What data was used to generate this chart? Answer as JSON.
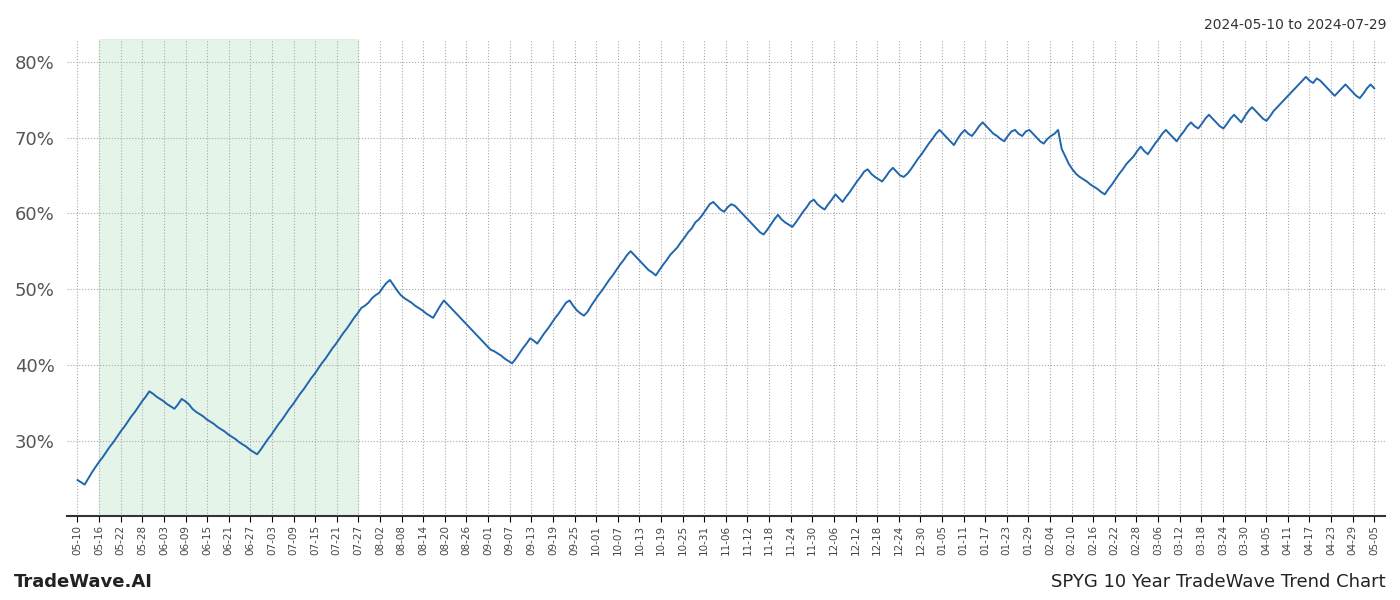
{
  "title_top_right": "2024-05-10 to 2024-07-29",
  "footer_left": "TradeWave.AI",
  "footer_right": "SPYG 10 Year TradeWave Trend Chart",
  "background_color": "#ffffff",
  "line_color": "#2166ac",
  "line_width": 1.4,
  "shade_color": "#d4edda",
  "shade_alpha": 0.6,
  "ylim": [
    20,
    83
  ],
  "yticks": [
    30,
    40,
    50,
    60,
    70,
    80
  ],
  "grid_color": "#aaaaaa",
  "x_labels": [
    "05-10",
    "05-16",
    "05-22",
    "05-28",
    "06-03",
    "06-09",
    "06-15",
    "06-21",
    "06-27",
    "07-03",
    "07-09",
    "07-15",
    "07-21",
    "07-27",
    "08-02",
    "08-08",
    "08-14",
    "08-20",
    "08-26",
    "09-01",
    "09-07",
    "09-13",
    "09-19",
    "09-25",
    "10-01",
    "10-07",
    "10-13",
    "10-19",
    "10-25",
    "10-31",
    "11-06",
    "11-12",
    "11-18",
    "11-24",
    "11-30",
    "12-06",
    "12-12",
    "12-18",
    "12-24",
    "12-30",
    "01-05",
    "01-11",
    "01-17",
    "01-23",
    "01-29",
    "02-04",
    "02-10",
    "02-16",
    "02-22",
    "02-28",
    "03-06",
    "03-12",
    "03-18",
    "03-24",
    "03-30",
    "04-05",
    "04-11",
    "04-17",
    "04-23",
    "04-29",
    "05-05"
  ],
  "shade_start_label": "05-16",
  "shade_end_label": "07-27",
  "y_values": [
    24.8,
    24.5,
    24.2,
    25.0,
    25.8,
    26.5,
    27.2,
    27.8,
    28.5,
    29.2,
    29.8,
    30.5,
    31.2,
    31.8,
    32.5,
    33.2,
    33.8,
    34.5,
    35.2,
    35.8,
    36.5,
    36.2,
    35.8,
    35.5,
    35.2,
    34.8,
    34.5,
    34.2,
    34.8,
    35.5,
    35.2,
    34.8,
    34.2,
    33.8,
    33.5,
    33.2,
    32.8,
    32.5,
    32.2,
    31.8,
    31.5,
    31.2,
    30.8,
    30.5,
    30.2,
    29.8,
    29.5,
    29.2,
    28.8,
    28.5,
    28.2,
    28.8,
    29.5,
    30.2,
    30.8,
    31.5,
    32.2,
    32.8,
    33.5,
    34.2,
    34.8,
    35.5,
    36.2,
    36.8,
    37.5,
    38.2,
    38.8,
    39.5,
    40.2,
    40.8,
    41.5,
    42.2,
    42.8,
    43.5,
    44.2,
    44.8,
    45.5,
    46.2,
    46.8,
    47.5,
    47.8,
    48.2,
    48.8,
    49.2,
    49.5,
    50.2,
    50.8,
    51.2,
    50.5,
    49.8,
    49.2,
    48.8,
    48.5,
    48.2,
    47.8,
    47.5,
    47.2,
    46.8,
    46.5,
    46.2,
    47.0,
    47.8,
    48.5,
    48.0,
    47.5,
    47.0,
    46.5,
    46.0,
    45.5,
    45.0,
    44.5,
    44.0,
    43.5,
    43.0,
    42.5,
    42.0,
    41.8,
    41.5,
    41.2,
    40.8,
    40.5,
    40.2,
    40.8,
    41.5,
    42.2,
    42.8,
    43.5,
    43.2,
    42.8,
    43.5,
    44.2,
    44.8,
    45.5,
    46.2,
    46.8,
    47.5,
    48.2,
    48.5,
    47.8,
    47.2,
    46.8,
    46.5,
    47.0,
    47.8,
    48.5,
    49.2,
    49.8,
    50.5,
    51.2,
    51.8,
    52.5,
    53.2,
    53.8,
    54.5,
    55.0,
    54.5,
    54.0,
    53.5,
    53.0,
    52.5,
    52.2,
    51.8,
    52.5,
    53.2,
    53.8,
    54.5,
    55.0,
    55.5,
    56.2,
    56.8,
    57.5,
    58.0,
    58.8,
    59.2,
    59.8,
    60.5,
    61.2,
    61.5,
    61.0,
    60.5,
    60.2,
    60.8,
    61.2,
    61.0,
    60.5,
    60.0,
    59.5,
    59.0,
    58.5,
    58.0,
    57.5,
    57.2,
    57.8,
    58.5,
    59.2,
    59.8,
    59.2,
    58.8,
    58.5,
    58.2,
    58.8,
    59.5,
    60.2,
    60.8,
    61.5,
    61.8,
    61.2,
    60.8,
    60.5,
    61.2,
    61.8,
    62.5,
    62.0,
    61.5,
    62.2,
    62.8,
    63.5,
    64.2,
    64.8,
    65.5,
    65.8,
    65.2,
    64.8,
    64.5,
    64.2,
    64.8,
    65.5,
    66.0,
    65.5,
    65.0,
    64.8,
    65.2,
    65.8,
    66.5,
    67.2,
    67.8,
    68.5,
    69.2,
    69.8,
    70.5,
    71.0,
    70.5,
    70.0,
    69.5,
    69.0,
    69.8,
    70.5,
    71.0,
    70.5,
    70.2,
    70.8,
    71.5,
    72.0,
    71.5,
    71.0,
    70.5,
    70.2,
    69.8,
    69.5,
    70.2,
    70.8,
    71.0,
    70.5,
    70.2,
    70.8,
    71.0,
    70.5,
    70.0,
    69.5,
    69.2,
    69.8,
    70.2,
    70.5,
    71.0,
    68.5,
    67.5,
    66.5,
    65.8,
    65.2,
    64.8,
    64.5,
    64.2,
    63.8,
    63.5,
    63.2,
    62.8,
    62.5,
    63.2,
    63.8,
    64.5,
    65.2,
    65.8,
    66.5,
    67.0,
    67.5,
    68.2,
    68.8,
    68.2,
    67.8,
    68.5,
    69.2,
    69.8,
    70.5,
    71.0,
    70.5,
    70.0,
    69.5,
    70.2,
    70.8,
    71.5,
    72.0,
    71.5,
    71.2,
    71.8,
    72.5,
    73.0,
    72.5,
    72.0,
    71.5,
    71.2,
    71.8,
    72.5,
    73.0,
    72.5,
    72.0,
    72.8,
    73.5,
    74.0,
    73.5,
    73.0,
    72.5,
    72.2,
    72.8,
    73.5,
    74.0,
    74.5,
    75.0,
    75.5,
    76.0,
    76.5,
    77.0,
    77.5,
    78.0,
    77.5,
    77.2,
    77.8,
    77.5,
    77.0,
    76.5,
    76.0,
    75.5,
    76.0,
    76.5,
    77.0,
    76.5,
    76.0,
    75.5,
    75.2,
    75.8,
    76.5,
    77.0,
    76.5
  ]
}
